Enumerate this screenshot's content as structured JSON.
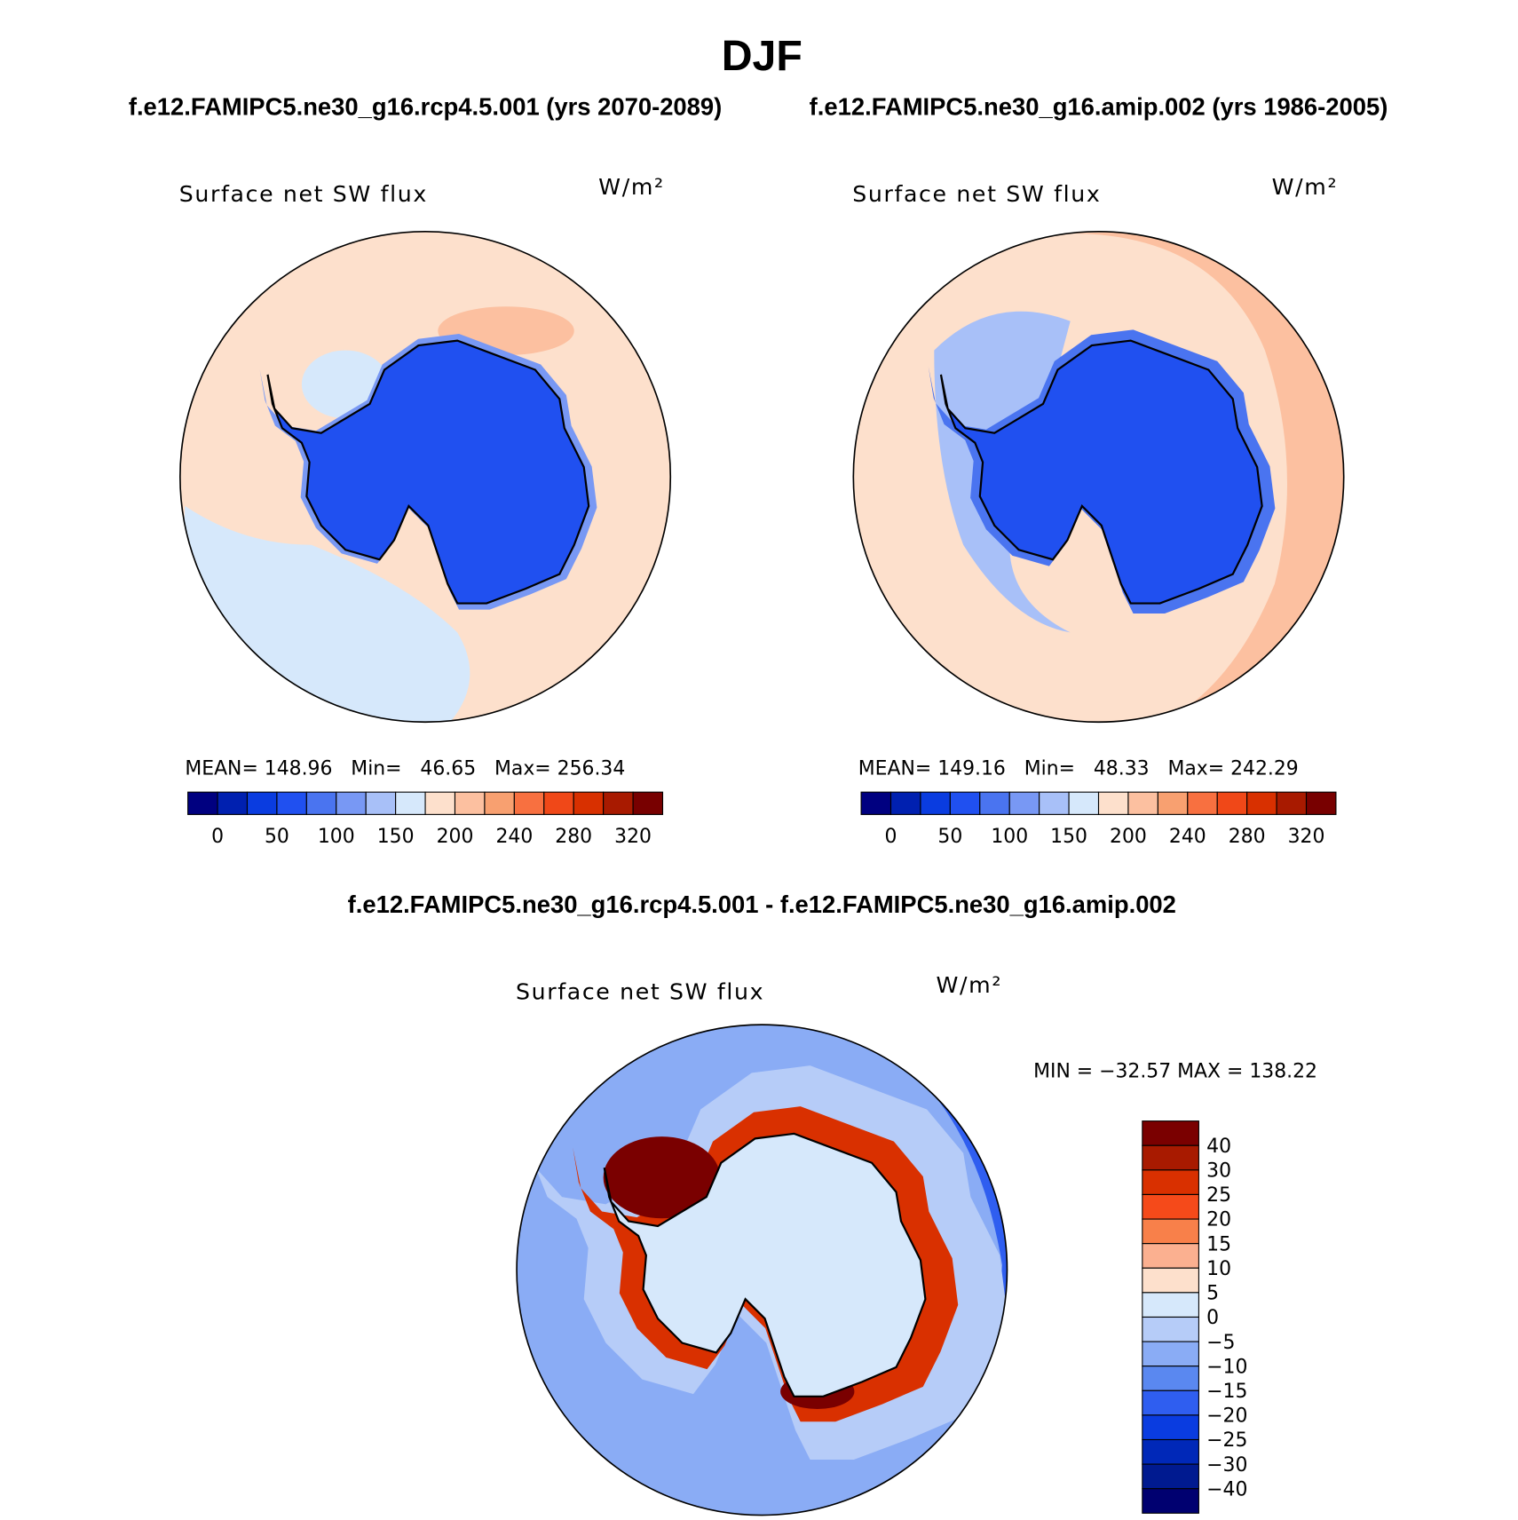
{
  "title": "DJF",
  "panels": [
    {
      "header": "f.e12.FAMIPC5.ne30_g16.rcp4.5.001 (yrs 2070-2089)",
      "field": "Surface net SW flux",
      "units": "W/m²",
      "stats": "MEAN= 148.96   Min=   46.65   Max= 256.34",
      "colorbar": {
        "colors": [
          "#000080",
          "#0020b0",
          "#0a3ce0",
          "#2050f0",
          "#4a74f0",
          "#7898f4",
          "#a8c0f8",
          "#d6e8fb",
          "#fde0cc",
          "#fcc0a0",
          "#f8a070",
          "#f87040",
          "#f04818",
          "#d83000",
          "#a81a00",
          "#780000"
        ],
        "labels": [
          0,
          50,
          100,
          150,
          200,
          240,
          280,
          320
        ]
      }
    },
    {
      "header": "f.e12.FAMIPC5.ne30_g16.amip.002 (yrs 1986-2005)",
      "field": "Surface net SW flux",
      "units": "W/m²",
      "stats": "MEAN= 149.16   Min=   48.33   Max= 242.29",
      "colorbar": {
        "colors": [
          "#000080",
          "#0020b0",
          "#0a3ce0",
          "#2050f0",
          "#4a74f0",
          "#7898f4",
          "#a8c0f8",
          "#d6e8fb",
          "#fde0cc",
          "#fcc0a0",
          "#f8a070",
          "#f87040",
          "#f04818",
          "#d83000",
          "#a81a00",
          "#780000"
        ],
        "labels": [
          0,
          50,
          100,
          150,
          200,
          240,
          280,
          320
        ]
      }
    }
  ],
  "diff": {
    "header": "f.e12.FAMIPC5.ne30_g16.rcp4.5.001 - f.e12.FAMIPC5.ne30_g16.amip.002",
    "field": "Surface net SW flux",
    "units": "W/m²",
    "stats": "MIN = −32.57 MAX = 138.22",
    "colorbar": {
      "colors": [
        "#7a0000",
        "#a81a00",
        "#d93000",
        "#f54a1a",
        "#f8804a",
        "#fbb090",
        "#fde0cc",
        "#d6e8fb",
        "#b6ccf8",
        "#8aacf5",
        "#5a88f0",
        "#2f5ef0",
        "#0a3ce0",
        "#0028b8",
        "#001a90",
        "#000070"
      ],
      "labels": [
        40,
        30,
        25,
        20,
        15,
        10,
        5,
        0,
        {
          "value": -5,
          "label": "−5"
        },
        {
          "value": -10,
          "label": "−10"
        },
        {
          "value": -15,
          "label": "−15"
        },
        {
          "value": -20,
          "label": "−20"
        },
        {
          "value": -25,
          "label": "−25"
        },
        {
          "value": -30,
          "label": "−30"
        },
        {
          "value": -40,
          "label": "−40"
        }
      ]
    }
  }
}
